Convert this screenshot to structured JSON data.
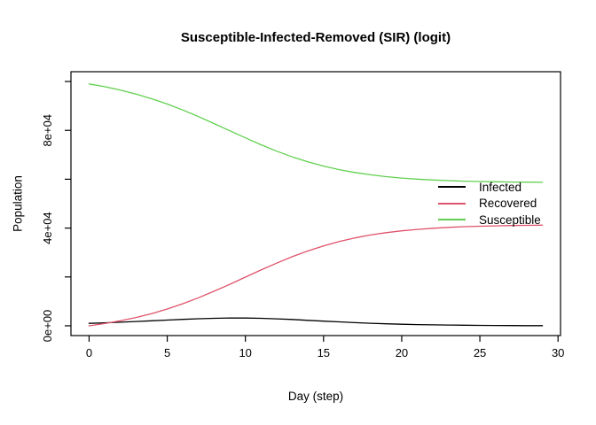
{
  "chart_data": {
    "type": "line",
    "title": "Susceptible-Infected-Removed (SIR) (logit)",
    "xlabel": "Day (step)",
    "ylabel": "Population",
    "axis_color": "#000000",
    "background_color": "#FFFFFF",
    "grid": false,
    "xlim": [
      -1.16,
      30.16
    ],
    "ylim": [
      -4000,
      104000
    ],
    "x_ticks": [
      0,
      5,
      10,
      15,
      20,
      25,
      30
    ],
    "x_tick_labels": [
      "0",
      "5",
      "10",
      "15",
      "20",
      "25",
      "30"
    ],
    "y_ticks": [
      0,
      20000,
      40000,
      60000,
      80000,
      100000
    ],
    "y_tick_labels": [
      "0e+00",
      "",
      "4e+04",
      "",
      "8e+04",
      ""
    ],
    "legend": {
      "position": "right-middle",
      "box": "none",
      "entries": [
        "Infected",
        "Recovered",
        "Susceptible"
      ]
    },
    "x": [
      0,
      1,
      2,
      3,
      4,
      5,
      6,
      7,
      8,
      9,
      10,
      11,
      12,
      13,
      14,
      15,
      16,
      17,
      18,
      19,
      20,
      21,
      22,
      23,
      24,
      25,
      26,
      27,
      28,
      29
    ],
    "series": [
      {
        "name": "Infected",
        "color": "#000000",
        "values": [
          1000,
          1220,
          1470,
          1750,
          2050,
          2350,
          2640,
          2900,
          3080,
          3180,
          3180,
          3060,
          2860,
          2580,
          2250,
          1920,
          1600,
          1300,
          1040,
          820,
          650,
          500,
          390,
          300,
          230,
          170,
          130,
          100,
          75,
          60
        ]
      },
      {
        "name": "Recovered",
        "color": "#DF536B",
        "values": [
          0,
          920,
          2040,
          3390,
          5000,
          6890,
          9050,
          11480,
          14150,
          16990,
          19910,
          22840,
          25660,
          28280,
          30650,
          32730,
          34490,
          35960,
          37160,
          38120,
          38880,
          39470,
          39930,
          40280,
          40560,
          40760,
          40920,
          41040,
          41130,
          41200
        ]
      },
      {
        "name": "Susceptible",
        "color": "#61D04F",
        "values": [
          99000,
          97860,
          96490,
          94860,
          92950,
          90760,
          88310,
          85620,
          82770,
          79830,
          76910,
          74100,
          71490,
          69140,
          67090,
          65350,
          63910,
          62740,
          61800,
          61060,
          60480,
          60030,
          59690,
          59420,
          59220,
          59060,
          58950,
          58860,
          58790,
          58740
        ]
      }
    ]
  }
}
